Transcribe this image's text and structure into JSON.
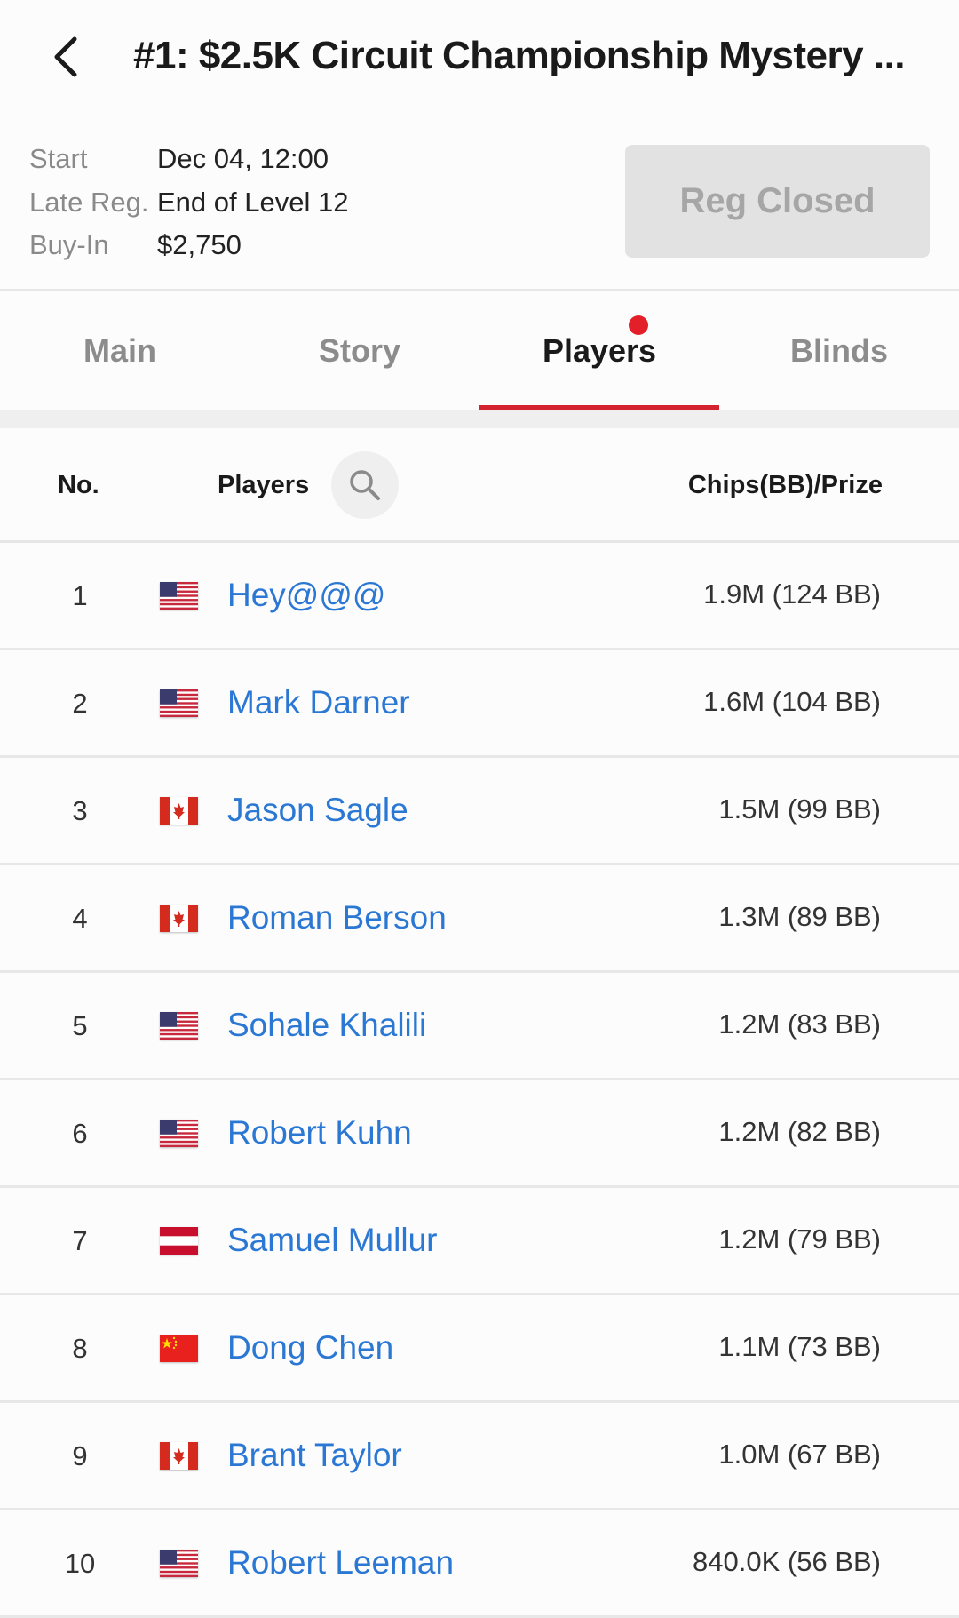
{
  "header": {
    "title": "#1: $2.5K Circuit Championship Mystery ...",
    "back_icon": "chevron-left-icon"
  },
  "info": [
    {
      "label": "Start",
      "value": "Dec 04, 12:00"
    },
    {
      "label": "Late Reg.",
      "value": "End of Level 12"
    },
    {
      "label": "Buy-In",
      "value": "$2,750"
    }
  ],
  "reg_button": "Reg Closed",
  "tabs": [
    {
      "label": "Main"
    },
    {
      "label": "Story",
      "badge": true
    },
    {
      "label": "Players",
      "active": true
    },
    {
      "label": "Blinds"
    }
  ],
  "table": {
    "headers": {
      "no": "No.",
      "players": "Players",
      "chips": "Chips(BB)/Prize"
    },
    "rows": [
      {
        "no": "1",
        "flag": "us",
        "name": "Hey@@@",
        "chips": "1.9M (124 BB)"
      },
      {
        "no": "2",
        "flag": "us",
        "name": "Mark Darner",
        "chips": "1.6M (104 BB)"
      },
      {
        "no": "3",
        "flag": "ca",
        "name": "Jason Sagle",
        "chips": "1.5M (99 BB)"
      },
      {
        "no": "4",
        "flag": "ca",
        "name": "Roman Berson",
        "chips": "1.3M (89 BB)"
      },
      {
        "no": "5",
        "flag": "us",
        "name": "Sohale Khalili",
        "chips": "1.2M (83 BB)"
      },
      {
        "no": "6",
        "flag": "us",
        "name": "Robert Kuhn",
        "chips": "1.2M (82 BB)"
      },
      {
        "no": "7",
        "flag": "at",
        "name": "Samuel Mullur",
        "chips": "1.2M (79 BB)"
      },
      {
        "no": "8",
        "flag": "cn",
        "name": "Dong Chen",
        "chips": "1.1M (73 BB)"
      },
      {
        "no": "9",
        "flag": "ca",
        "name": "Brant Taylor",
        "chips": "1.0M (67 BB)"
      },
      {
        "no": "10",
        "flag": "us",
        "name": "Robert Leeman",
        "chips": "840.0K (56 BB)"
      }
    ]
  },
  "colors": {
    "accent": "#d3232f",
    "link": "#2b78d4",
    "badge": "#e3202a"
  }
}
